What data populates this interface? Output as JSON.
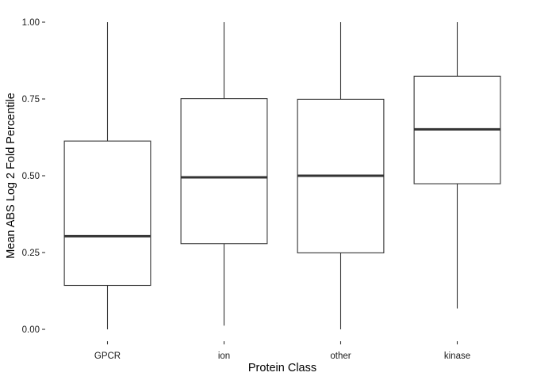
{
  "chart_data": {
    "type": "boxplot",
    "title": "",
    "xlabel": "Protein Class",
    "ylabel": "Mean ABS Log 2 Fold Percentile",
    "ylim": [
      0.0,
      1.0
    ],
    "y_ticks": [
      0.0,
      0.25,
      0.5,
      0.75,
      1.0
    ],
    "y_tick_labels": [
      "0.00",
      "0.25",
      "0.50",
      "0.75",
      "1.00"
    ],
    "grid": false,
    "legend": "none",
    "categories": [
      "GPCR",
      "ion",
      "other",
      "kinase"
    ],
    "boxes": [
      {
        "category": "GPCR",
        "min": 0.0,
        "q1": 0.143,
        "median": 0.303,
        "q3": 0.613,
        "max": 1.0
      },
      {
        "category": "ion",
        "min": 0.012,
        "q1": 0.279,
        "median": 0.495,
        "q3": 0.751,
        "max": 1.0
      },
      {
        "category": "other",
        "min": 0.0,
        "q1": 0.249,
        "median": 0.5,
        "q3": 0.749,
        "max": 1.0
      },
      {
        "category": "kinase",
        "min": 0.068,
        "q1": 0.474,
        "median": 0.651,
        "q3": 0.824,
        "max": 1.0
      }
    ],
    "colors": {
      "box_fill": "#ffffff",
      "box_stroke": "#333333",
      "median_stroke": "#333333",
      "axis_tick": "#333333"
    }
  }
}
